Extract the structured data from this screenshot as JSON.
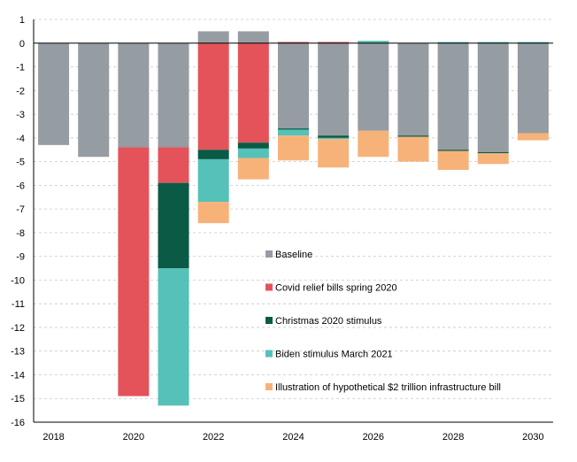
{
  "chart_data": {
    "type": "bar",
    "stacked": true,
    "title": "",
    "xlabel": "",
    "ylabel": "",
    "ylim": [
      -16,
      1
    ],
    "yticks": [
      1,
      0,
      -1,
      -2,
      -3,
      -4,
      -5,
      -6,
      -7,
      -8,
      -9,
      -10,
      -11,
      -12,
      -13,
      -14,
      -15,
      -16
    ],
    "x_tick_labels": [
      "2018",
      "2020",
      "2022",
      "2024",
      "2026",
      "2028",
      "2030"
    ],
    "categories": [
      "2018",
      "2019",
      "2020",
      "2021",
      "2022",
      "2023",
      "2024",
      "2025",
      "2026",
      "2027",
      "2028",
      "2029",
      "2030"
    ],
    "grid": true,
    "legend_position": "center-right",
    "series": [
      {
        "name": "Baseline",
        "color": "#959ca2",
        "values": [
          -4.3,
          -4.8,
          -4.4,
          -4.4,
          0.5,
          0.5,
          -3.6,
          -3.9,
          -3.7,
          -3.9,
          -4.5,
          -4.6,
          -3.8
        ]
      },
      {
        "name": "Covid relief bills spring 2020",
        "color": "#e5535a",
        "values": [
          0,
          0,
          -10.5,
          -1.5,
          -4.5,
          -4.2,
          0.05,
          0.05,
          0,
          0,
          0,
          0,
          0
        ]
      },
      {
        "name": "Christmas 2020 stimulus",
        "color": "#0a5a46",
        "values": [
          0,
          0,
          0,
          -3.6,
          -0.4,
          -0.25,
          -0.05,
          -0.1,
          0,
          -0.05,
          -0.05,
          -0.05,
          0
        ]
      },
      {
        "name": "Biden stimulus March 2021",
        "color": "#55c1b8",
        "values": [
          0,
          0,
          0,
          -5.8,
          -1.8,
          -0.4,
          -0.25,
          -0.05,
          0.1,
          0,
          0.05,
          0.05,
          0.05
        ]
      },
      {
        "name": "Illustration of hypothetical $2 trillion infrastructure bill",
        "color": "#f7b27a",
        "values": [
          0,
          0,
          0,
          0,
          -0.9,
          -0.9,
          -1.05,
          -1.2,
          -1.1,
          -1.05,
          -0.8,
          -0.45,
          -0.3
        ]
      }
    ]
  }
}
